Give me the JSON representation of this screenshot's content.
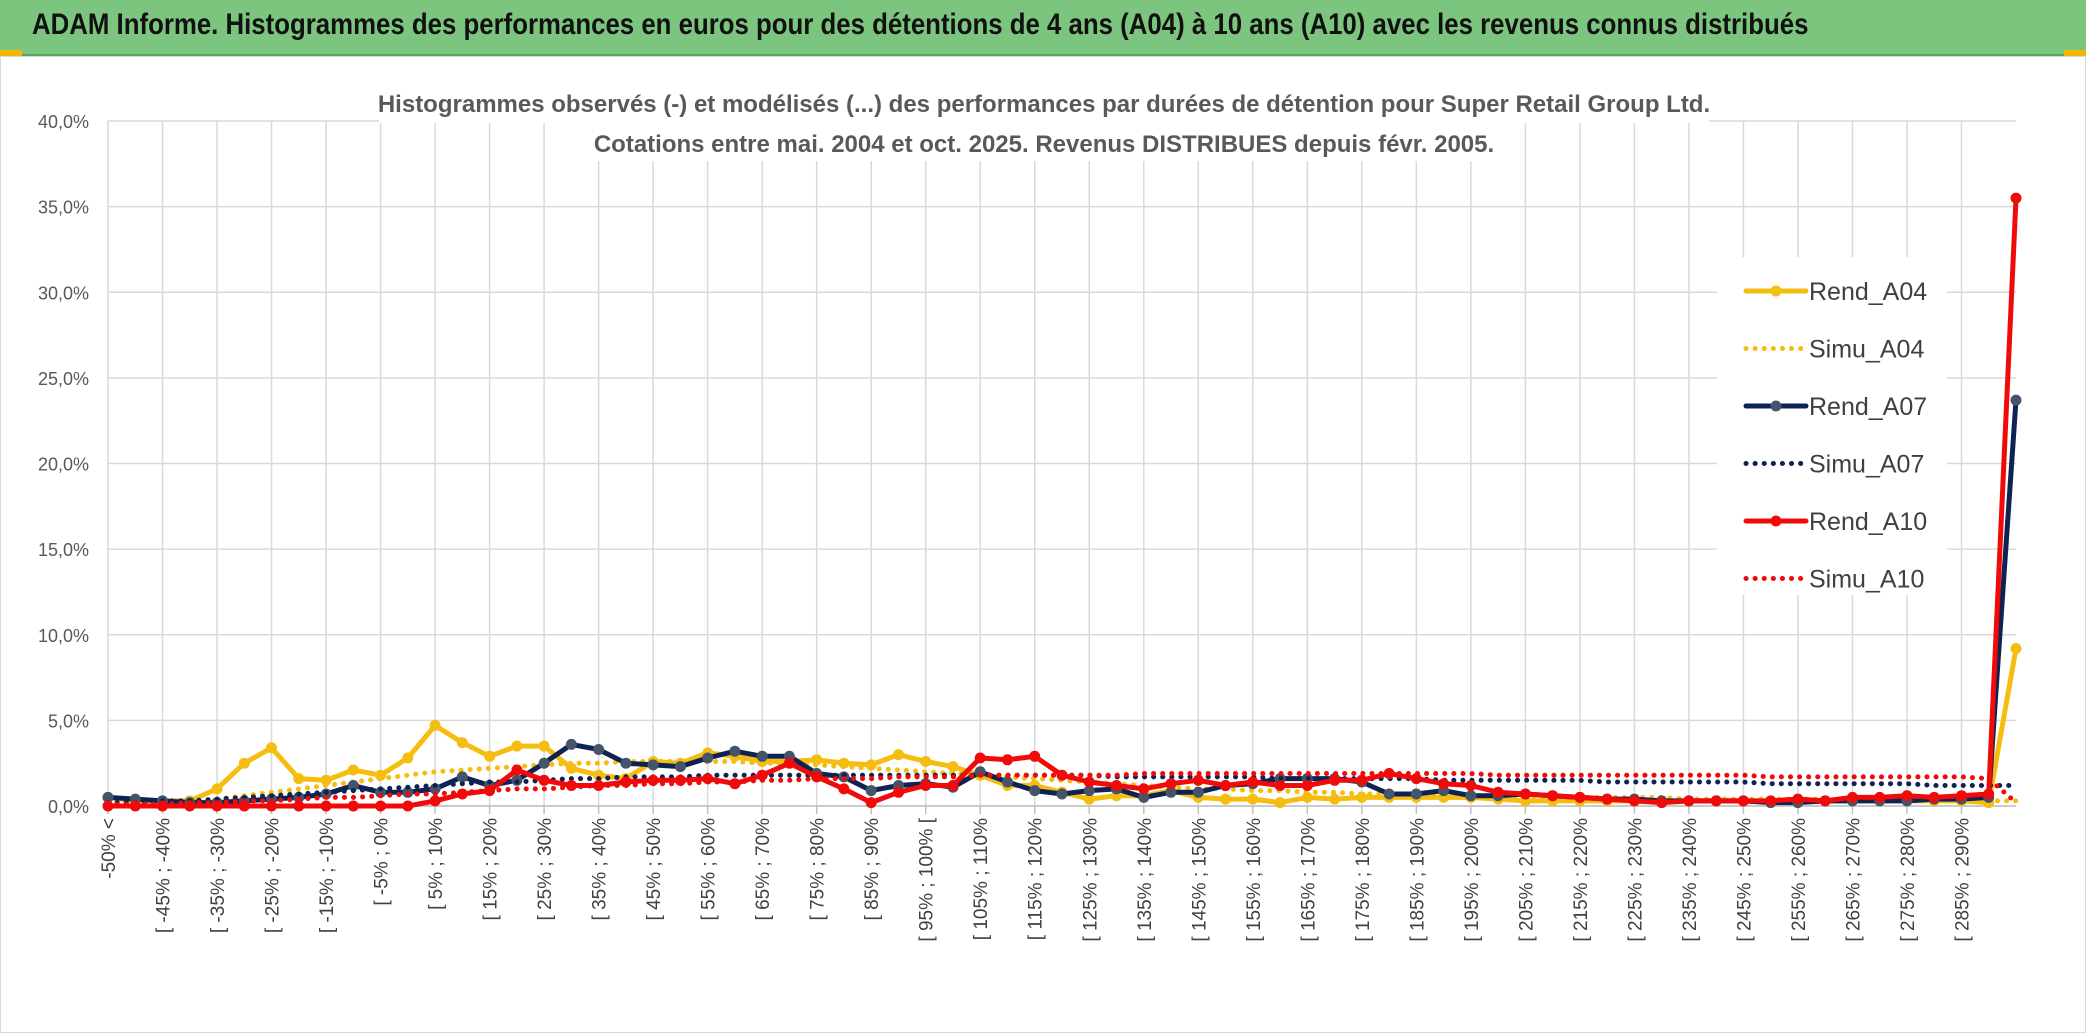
{
  "header": {
    "title": "ADAM Informe. Histogrammes des performances en euros pour des détentions de 4 ans (A04) à 10 ans (A10) avec les revenus connus distribués"
  },
  "colors": {
    "header_bg": "#7cc57e",
    "grid": "#d9d9d9",
    "rend_a04": "#f5bd0f",
    "rend_a07": "#0f2353",
    "rend_a10": "#f00a0a"
  },
  "chart_data": {
    "type": "line",
    "title_line1": "Histogrammes observés (-) et modélisés (...) des performances par durées de détention pour Super Retail Group Ltd.",
    "title_line2": "Cotations entre mai. 2004 et oct. 2025. Revenus DISTRIBUES depuis févr. 2005.",
    "ylim": [
      0,
      40
    ],
    "y_ticks": [
      "0,0%",
      "5,0%",
      "10,0%",
      "15,0%",
      "20,0%",
      "25,0%",
      "30,0%",
      "35,0%",
      "40,0%"
    ],
    "grid": true,
    "legend_position": "top-right",
    "x_tick_labels": [
      "-50% <",
      "[ -45% ; -40%",
      "[ -35% ; -30%",
      "[ -25% ; -20%",
      "[ -15% ; -10%",
      "[ -5% ; 0%",
      "[ 5% ; 10%",
      "[ 15% ; 20%",
      "[ 25% ; 30%",
      "[ 35% ; 40%",
      "[ 45% ; 50%",
      "[ 55% ; 60%",
      "[ 65% ; 70%",
      "[ 75% ; 80%",
      "[ 85% ; 90%",
      "[ 95% ; 100% [",
      "[ 105% ; 110%",
      "[ 115% ; 120%",
      "[ 125% ; 130%",
      "[ 135% ; 140%",
      "[ 145% ; 150%",
      "[ 155% ; 160%",
      "[ 165% ; 170%",
      "[ 175% ; 180%",
      "[ 185% ; 190%",
      "[ 195% ; 200%",
      "[ 205% ; 210%",
      "[ 215% ; 220%",
      "[ 225% ; 230%",
      "[ 235% ; 240%",
      "[ 245% ; 250%",
      "[ 255% ; 260%",
      "[ 265% ; 270%",
      "[ 275% ; 280%",
      "[ 285% ; 290%"
    ],
    "series": [
      {
        "name": "Rend_A04",
        "style": "solid",
        "color": "#f5bd0f",
        "values": [
          0.5,
          0.3,
          0.3,
          0.3,
          1.0,
          2.5,
          3.4,
          1.6,
          1.5,
          2.1,
          1.8,
          2.8,
          4.7,
          3.7,
          2.9,
          3.5,
          3.5,
          2.2,
          1.8,
          1.6,
          2.6,
          2.5,
          3.1,
          2.9,
          2.6,
          2.6,
          2.7,
          2.5,
          2.4,
          3.0,
          2.6,
          2.3,
          1.8,
          1.2,
          1.2,
          0.8,
          0.4,
          0.6,
          0.6,
          0.9,
          0.5,
          0.4,
          0.4,
          0.2,
          0.5,
          0.4,
          0.5,
          0.5,
          0.5,
          0.5,
          0.5,
          0.4,
          0.3,
          0.3,
          0.3,
          0.3,
          0.3,
          0.3,
          0.3,
          0.3,
          0.3,
          0.3,
          0.3,
          0.3,
          0.3,
          0.3,
          0.3,
          0.3,
          0.3,
          0.2,
          9.2
        ]
      },
      {
        "name": "Simu_A04",
        "style": "dotted",
        "color": "#f5bd0f",
        "values": [
          0.2,
          0.2,
          0.2,
          0.3,
          0.4,
          0.6,
          0.8,
          1.0,
          1.2,
          1.4,
          1.6,
          1.8,
          2.0,
          2.1,
          2.2,
          2.3,
          2.4,
          2.5,
          2.5,
          2.6,
          2.6,
          2.6,
          2.6,
          2.6,
          2.5,
          2.5,
          2.4,
          2.3,
          2.2,
          2.1,
          2.0,
          1.9,
          1.8,
          1.7,
          1.6,
          1.5,
          1.4,
          1.3,
          1.2,
          1.1,
          1.0,
          1.0,
          0.9,
          0.9,
          0.8,
          0.8,
          0.7,
          0.7,
          0.7,
          0.6,
          0.6,
          0.6,
          0.6,
          0.5,
          0.5,
          0.5,
          0.5,
          0.5,
          0.4,
          0.4,
          0.4,
          0.4,
          0.4,
          0.4,
          0.3,
          0.3,
          0.3,
          0.3,
          0.3,
          0.3,
          0.3
        ]
      },
      {
        "name": "Rend_A07",
        "style": "solid",
        "color": "#0f2353",
        "values": [
          0.5,
          0.4,
          0.3,
          0.2,
          0.2,
          0.3,
          0.4,
          0.5,
          0.7,
          1.2,
          0.8,
          0.8,
          1.0,
          1.7,
          1.2,
          1.5,
          2.5,
          3.6,
          3.3,
          2.5,
          2.4,
          2.3,
          2.8,
          3.2,
          2.9,
          2.9,
          1.9,
          1.7,
          0.9,
          1.2,
          1.3,
          1.1,
          2.0,
          1.4,
          0.9,
          0.7,
          0.9,
          1.0,
          0.5,
          0.8,
          0.8,
          1.2,
          1.3,
          1.6,
          1.6,
          1.6,
          1.4,
          0.7,
          0.7,
          0.9,
          0.6,
          0.6,
          0.7,
          0.6,
          0.5,
          0.4,
          0.4,
          0.3,
          0.3,
          0.3,
          0.3,
          0.2,
          0.2,
          0.3,
          0.3,
          0.3,
          0.3,
          0.4,
          0.4,
          0.5,
          23.7
        ]
      },
      {
        "name": "Simu_A07",
        "style": "dotted",
        "color": "#0f2353",
        "values": [
          0.2,
          0.2,
          0.3,
          0.3,
          0.4,
          0.5,
          0.6,
          0.7,
          0.8,
          0.9,
          1.0,
          1.1,
          1.2,
          1.3,
          1.4,
          1.4,
          1.5,
          1.6,
          1.6,
          1.7,
          1.7,
          1.7,
          1.8,
          1.8,
          1.8,
          1.8,
          1.8,
          1.8,
          1.8,
          1.8,
          1.8,
          1.8,
          1.8,
          1.8,
          1.8,
          1.8,
          1.8,
          1.7,
          1.7,
          1.7,
          1.7,
          1.7,
          1.7,
          1.6,
          1.6,
          1.6,
          1.6,
          1.6,
          1.6,
          1.5,
          1.5,
          1.5,
          1.5,
          1.5,
          1.5,
          1.4,
          1.4,
          1.4,
          1.4,
          1.4,
          1.4,
          1.3,
          1.3,
          1.3,
          1.3,
          1.3,
          1.3,
          1.2,
          1.2,
          1.2,
          1.2
        ]
      },
      {
        "name": "Rend_A10",
        "style": "solid",
        "color": "#f00a0a",
        "values": [
          0.0,
          0.0,
          0.0,
          0.0,
          0.0,
          0.0,
          0.0,
          0.0,
          0.0,
          0.0,
          0.0,
          0.0,
          0.3,
          0.7,
          0.9,
          2.1,
          1.5,
          1.2,
          1.2,
          1.4,
          1.5,
          1.5,
          1.6,
          1.3,
          1.8,
          2.5,
          1.7,
          1.0,
          0.2,
          0.8,
          1.2,
          1.2,
          2.8,
          2.7,
          2.9,
          1.8,
          1.4,
          1.2,
          1.0,
          1.3,
          1.5,
          1.2,
          1.4,
          1.2,
          1.2,
          1.5,
          1.5,
          1.9,
          1.6,
          1.3,
          1.2,
          0.8,
          0.7,
          0.6,
          0.5,
          0.4,
          0.3,
          0.2,
          0.3,
          0.3,
          0.3,
          0.3,
          0.4,
          0.3,
          0.5,
          0.5,
          0.6,
          0.5,
          0.6,
          0.7,
          35.5
        ]
      },
      {
        "name": "Simu_A10",
        "style": "dotted",
        "color": "#f00a0a",
        "values": [
          0.1,
          0.1,
          0.1,
          0.2,
          0.2,
          0.3,
          0.3,
          0.4,
          0.5,
          0.5,
          0.6,
          0.7,
          0.7,
          0.8,
          0.9,
          1.0,
          1.0,
          1.1,
          1.2,
          1.2,
          1.3,
          1.3,
          1.4,
          1.4,
          1.5,
          1.5,
          1.6,
          1.6,
          1.6,
          1.7,
          1.7,
          1.7,
          1.8,
          1.8,
          1.8,
          1.8,
          1.8,
          1.8,
          1.9,
          1.9,
          1.9,
          1.9,
          1.9,
          1.9,
          1.9,
          1.9,
          1.9,
          1.9,
          1.9,
          1.9,
          1.9,
          1.8,
          1.8,
          1.8,
          1.8,
          1.8,
          1.8,
          1.8,
          1.8,
          1.8,
          1.8,
          1.7,
          1.7,
          1.7,
          1.7,
          1.7,
          1.7,
          1.7,
          1.7,
          1.6,
          0.2
        ]
      }
    ]
  }
}
